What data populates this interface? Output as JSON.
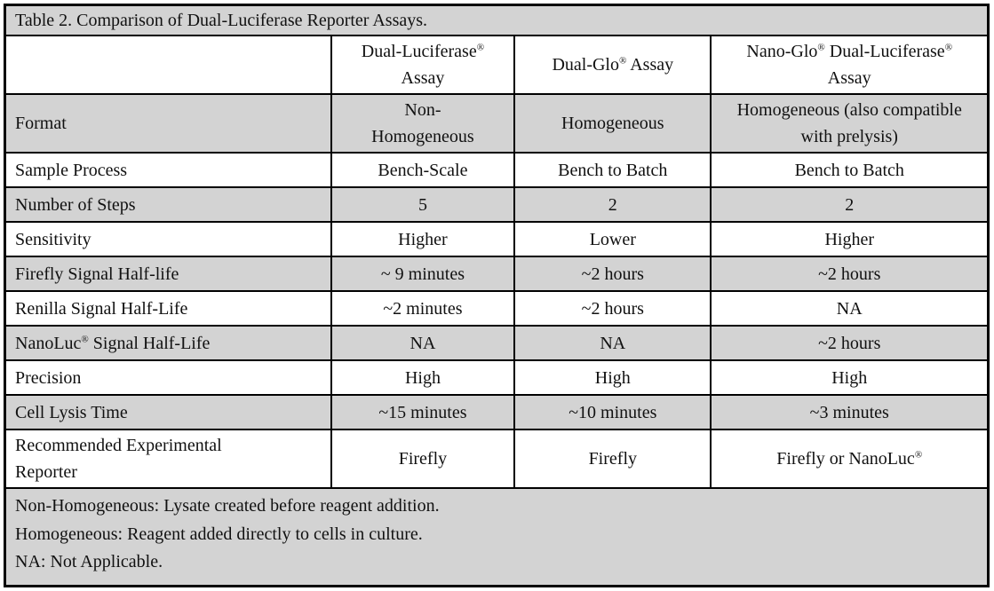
{
  "table": {
    "title": "Table 2. Comparison of Dual-Luciferase Reporter Assays.",
    "columns": [
      "Dual-Luciferase® Assay",
      "Dual-Glo® Assay",
      "Nano-Glo® Dual-Luciferase® Assay"
    ],
    "rows": [
      {
        "label": "Format",
        "values": [
          "Non-Homogeneous",
          "Homogeneous",
          "Homogeneous (also compatible with prelysis)"
        ]
      },
      {
        "label": "Sample Process",
        "values": [
          "Bench-Scale",
          "Bench to Batch",
          "Bench to Batch"
        ]
      },
      {
        "label": "Number of Steps",
        "values": [
          "5",
          "2",
          "2"
        ]
      },
      {
        "label": "Sensitivity",
        "values": [
          "Higher",
          "Lower",
          "Higher"
        ]
      },
      {
        "label": "Firefly Signal Half-life",
        "values": [
          "~ 9 minutes",
          "~2 hours",
          "~2 hours"
        ]
      },
      {
        "label": "Renilla Signal Half-Life",
        "values": [
          "~2 minutes",
          "~2 hours",
          "NA"
        ]
      },
      {
        "label": "NanoLuc® Signal Half-Life",
        "values": [
          "NA",
          "NA",
          "~2 hours"
        ]
      },
      {
        "label": "Precision",
        "values": [
          "High",
          "High",
          "High"
        ]
      },
      {
        "label": "Cell Lysis Time",
        "values": [
          "~15 minutes",
          "~10 minutes",
          "~3 minutes"
        ]
      },
      {
        "label": "Recommended Experimental Reporter",
        "values": [
          "Firefly",
          "Firefly",
          "Firefly or NanoLuc®"
        ]
      }
    ],
    "footnotes": [
      "Non-Homogeneous: Lysate created before reagent addition.",
      "Homogeneous: Reagent added directly to cells in culture.",
      "NA: Not Applicable."
    ],
    "colors": {
      "row_shade": "#d3d3d3",
      "border": "#000000",
      "background": "#ffffff"
    }
  }
}
